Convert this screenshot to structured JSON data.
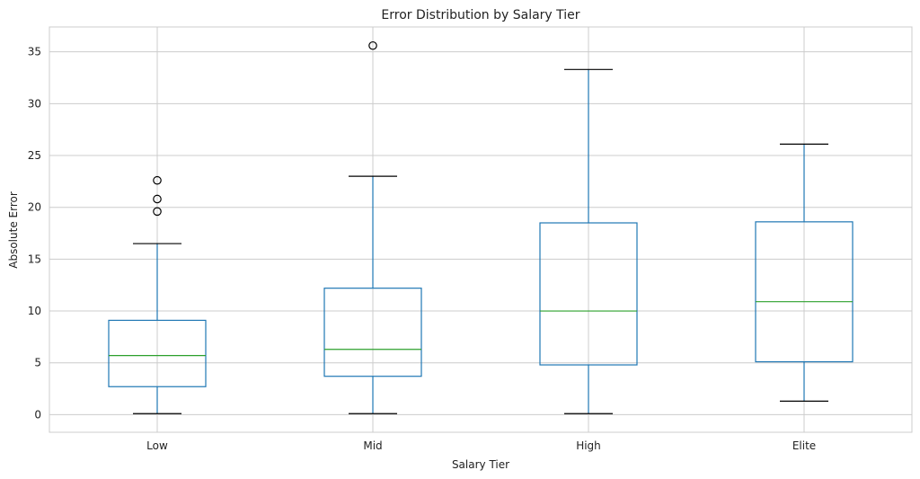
{
  "chart_data": {
    "type": "box",
    "title": "Error Distribution by Salary Tier",
    "xlabel": "Salary Tier",
    "ylabel": "Absolute Error",
    "ylim": [
      -1.7,
      37.4
    ],
    "yticks": [
      0,
      5,
      10,
      15,
      20,
      25,
      30,
      35
    ],
    "grid": true,
    "categories": [
      "Low",
      "Mid",
      "High",
      "Elite"
    ],
    "boxes": [
      {
        "category": "Low",
        "whisker_low": 0.1,
        "q1": 2.7,
        "median": 5.7,
        "q3": 9.1,
        "whisker_high": 16.5,
        "fliers": [
          19.6,
          20.8,
          22.6
        ]
      },
      {
        "category": "Mid",
        "whisker_low": 0.1,
        "q1": 3.7,
        "median": 6.3,
        "q3": 12.2,
        "whisker_high": 23.0,
        "fliers": [
          35.6
        ]
      },
      {
        "category": "High",
        "whisker_low": 0.1,
        "q1": 4.8,
        "median": 10.0,
        "q3": 18.5,
        "whisker_high": 33.3,
        "fliers": []
      },
      {
        "category": "Elite",
        "whisker_low": 1.3,
        "q1": 5.1,
        "median": 10.9,
        "q3": 18.6,
        "whisker_high": 26.1,
        "fliers": []
      }
    ],
    "colors": {
      "box": "#1f77b4",
      "median": "#2ca02c",
      "cap": "#000000",
      "flier": "#000000",
      "grid": "#cccccc"
    }
  }
}
